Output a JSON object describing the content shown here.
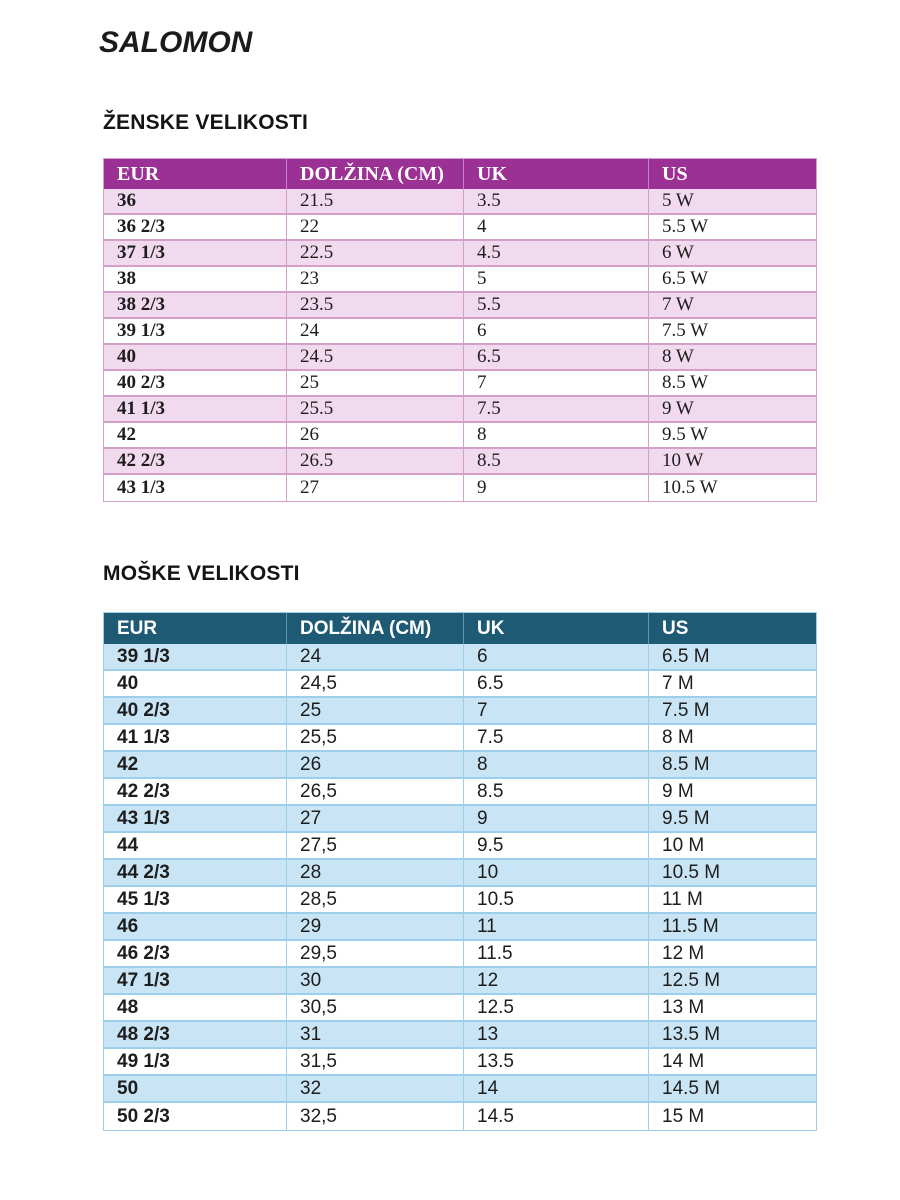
{
  "brand": {
    "logo_text": "SALOMON"
  },
  "women": {
    "title": "ŽENSKE VELIKOSTI",
    "columns": [
      "EUR",
      "DOLŽINA (CM)",
      "UK",
      "US"
    ],
    "rows": [
      [
        "36",
        "21.5",
        "3.5",
        "5 W"
      ],
      [
        "36 2/3",
        "22",
        "4",
        "5.5 W"
      ],
      [
        "37 1/3",
        "22.5",
        "4.5",
        "6 W"
      ],
      [
        "38",
        "23",
        "5",
        "6.5 W"
      ],
      [
        "38 2/3",
        "23.5",
        "5.5",
        "7 W"
      ],
      [
        "39 1/3",
        "24",
        "6",
        "7.5 W"
      ],
      [
        "40",
        "24.5",
        "6.5",
        "8 W"
      ],
      [
        "40 2/3",
        "25",
        "7",
        "8.5 W"
      ],
      [
        "41 1/3",
        "25.5",
        "7.5",
        "9 W"
      ],
      [
        "42",
        "26",
        "8",
        "9.5 W"
      ],
      [
        "42 2/3",
        "26.5",
        "8.5",
        "10 W"
      ],
      [
        "43 1/3",
        "27",
        "9",
        "10.5 W"
      ]
    ],
    "colors": {
      "header_bg": "#9B3095",
      "header_text": "#FFFFFF",
      "header_divider": "#C583C3",
      "row_bg": "#FFFFFF",
      "row_alt_bg": "#F2DAEE",
      "border": "#D2A0CB"
    }
  },
  "men": {
    "title": "MOŠKE VELIKOSTI",
    "columns": [
      "EUR",
      "DOLŽINA (CM)",
      "UK",
      "US"
    ],
    "rows": [
      [
        "39 1/3",
        "24",
        "6",
        "6.5 M"
      ],
      [
        "40",
        "24,5",
        "6.5",
        "7 M"
      ],
      [
        "40 2/3",
        "25",
        "7",
        "7.5 M"
      ],
      [
        "41 1/3",
        "25,5",
        "7.5",
        "8 M"
      ],
      [
        "42",
        "26",
        "8",
        "8.5 M"
      ],
      [
        "42 2/3",
        "26,5",
        "8.5",
        "9 M"
      ],
      [
        "43 1/3",
        "27",
        "9",
        "9.5 M"
      ],
      [
        "44",
        "27,5",
        "9.5",
        "10 M"
      ],
      [
        "44 2/3",
        "28",
        "10",
        "10.5 M"
      ],
      [
        "45 1/3",
        "28,5",
        "10.5",
        "11 M"
      ],
      [
        "46",
        "29",
        "11",
        "11.5 M"
      ],
      [
        "46 2/3",
        "29,5",
        "11.5",
        "12 M"
      ],
      [
        "47 1/3",
        "30",
        "12",
        "12.5 M"
      ],
      [
        "48",
        "30,5",
        "12.5",
        "13 M"
      ],
      [
        "48 2/3",
        "31",
        "13",
        "13.5 M"
      ],
      [
        "49 1/3",
        "31,5",
        "13.5",
        "14 M"
      ],
      [
        "50",
        "32",
        "14",
        "14.5 M"
      ],
      [
        "50 2/3",
        "32,5",
        "14.5",
        "15 M"
      ]
    ],
    "colors": {
      "header_bg": "#1E5A74",
      "header_text": "#FFFFFF",
      "header_divider": "#6A93A8",
      "row_bg": "#FFFFFF",
      "row_alt_bg": "#C9E5F5",
      "border": "#9DCEEA"
    }
  }
}
